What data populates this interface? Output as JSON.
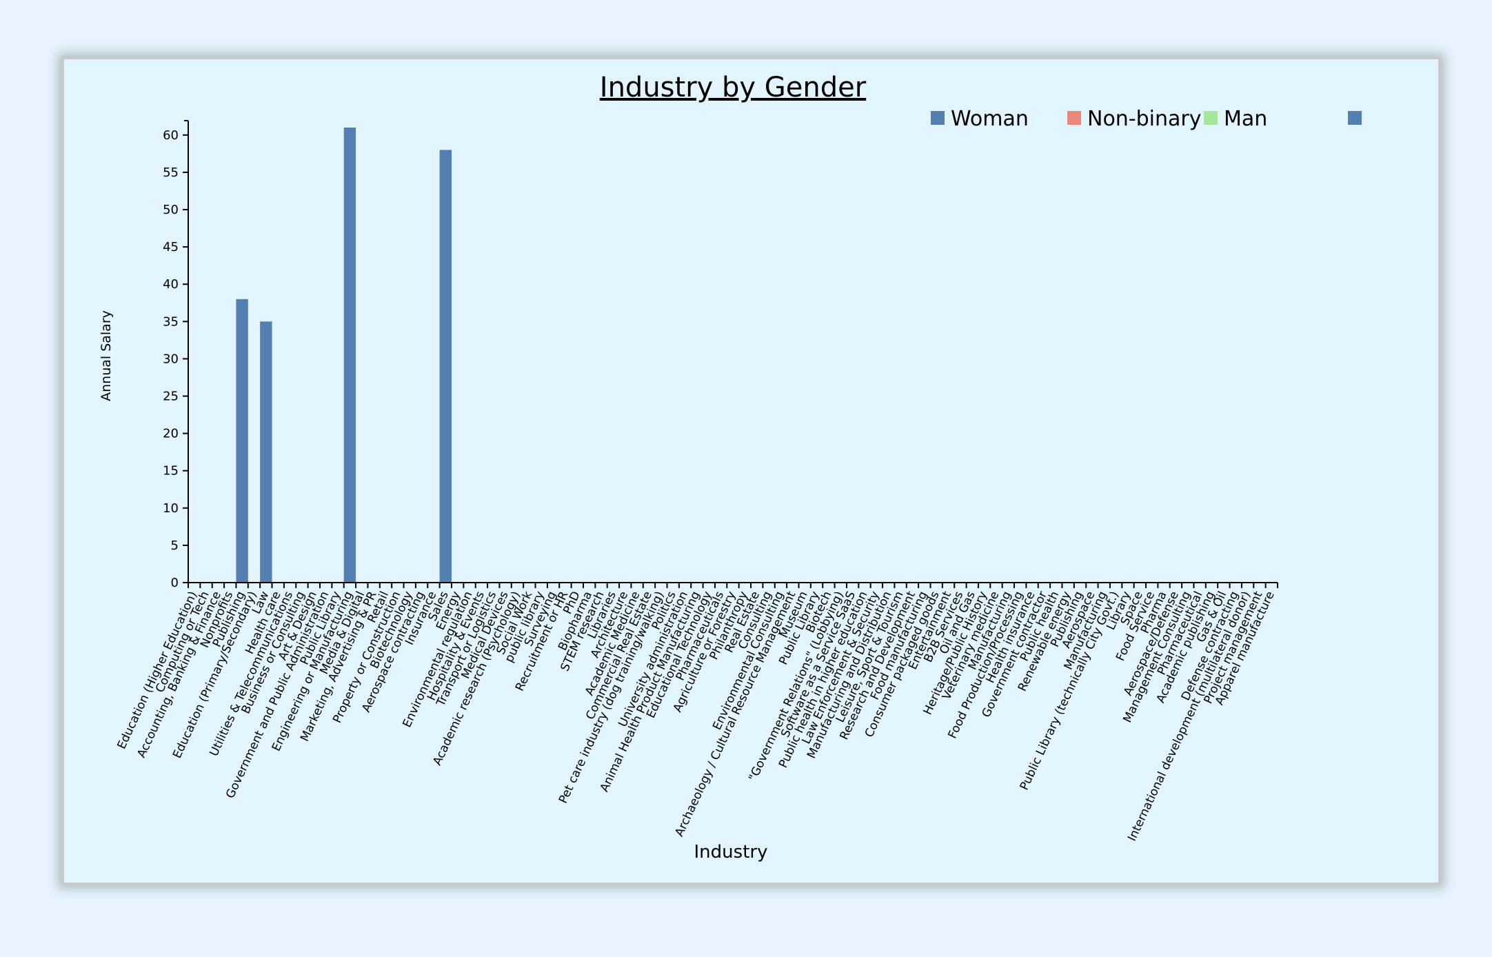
{
  "chart_data": {
    "type": "bar",
    "title": "Industry by Gender",
    "xlabel": "Industry",
    "ylabel": "Annual Salary",
    "ylim": [
      0,
      61
    ],
    "yticks": [
      0,
      5,
      10,
      15,
      20,
      25,
      30,
      35,
      40,
      45,
      50,
      55,
      60
    ],
    "grid": false,
    "legend_position": "top-right",
    "legend": [
      {
        "label": "Woman",
        "color": "#5380b0"
      },
      {
        "label": "Non-binary",
        "color": "#e8877a"
      },
      {
        "label": "Man",
        "color": "#a6e69b"
      },
      {
        "label": "",
        "color": "#5380b0"
      }
    ],
    "categories": [
      "Education (Higher Education)",
      "Computing or Tech",
      "Accounting, Banking & Finance",
      "Nonprofits",
      "Publishing",
      "Education (Primary/Secondary)",
      "Law",
      "Health care",
      "Utilities & Telecommunications",
      "Business or Consulting",
      "Art & Design",
      "Government and Public Administration",
      "Public Library",
      "Engineering or Manufacturing",
      "Media & Digital",
      "Marketing, Advertising & PR",
      "Retail",
      "Property or Construction",
      "Biotechnology",
      "Aerospace contracting",
      "Insurance",
      "Sales",
      "Energy",
      "Environmental regulation",
      "Hospitality & Events",
      "Transport or Logistics",
      "Medical Devices",
      "Academic research (Psychology)",
      "Social Work",
      "public library",
      "Surveying",
      "Recruitment or HR",
      "PhD",
      "Biopharma",
      "STEM research",
      "Libraries",
      "Architecture",
      "Academic Medicine",
      "Commercial Real Estate",
      "Pet care industry (dog training/walking)",
      "Politics",
      "University administration",
      "Animal Health Product Manufacturing",
      "Educational Technology",
      "Pharmaceuticals",
      "Agriculture or Forestry",
      "Philanthropy",
      "Real Estate",
      "Consulting",
      "Environmental Consulting",
      "Archaeology / Cultural Resource Management",
      "Museum",
      "Public Library",
      "Biotech",
      "\"Government Relations\" (Lobbying)",
      "Software as a Service SaaS",
      "Public health in higher education",
      "Law Enforcement & Security",
      "Manufacturing and Distribution",
      "Leisure, Sport & Tourism",
      "Research and Development",
      "Food manufacturing",
      "Consumer packaged goods",
      "Entertainment",
      "B2B Services",
      "Oil and Gas",
      "Heritage/Public History",
      "Veterinary medicine",
      "Manufacturing",
      "Food Production/Processing",
      "Health insurance",
      "Government contractor",
      "Public health",
      "Renewable energy",
      "Publishing",
      "Aerospace",
      "Manufacturing",
      "Public Library (technically City Govt.)",
      "Library",
      "Space",
      "Food Service",
      "Pharma",
      "Aerospace/Defense",
      "Management Consulting",
      "Pharmaceutical",
      "Academic publishing",
      "Gas & Oil",
      "Defense contracting",
      "International development (multilateral donor)",
      "Project management",
      "Apparel manufacture"
    ],
    "series": [
      {
        "name": "Woman",
        "color": "#5380b0",
        "values": [
          0,
          0,
          0,
          0,
          38,
          0,
          35,
          0,
          0,
          0,
          0,
          0,
          0,
          61,
          0,
          0,
          0,
          0,
          0,
          0,
          0,
          58,
          0,
          0,
          0,
          0,
          0,
          0,
          0,
          0,
          0,
          0,
          0,
          0,
          0,
          0,
          0,
          0,
          0,
          0,
          0,
          0,
          0,
          0,
          0,
          0,
          0,
          0,
          0,
          0,
          0,
          0,
          0,
          0,
          0,
          0,
          0,
          0,
          0,
          0,
          0,
          0,
          0,
          0,
          0,
          0,
          0,
          0,
          0,
          0,
          0,
          0,
          0,
          0,
          0,
          0,
          0,
          0,
          0,
          0,
          0,
          0,
          0,
          0,
          0,
          0,
          0,
          0,
          0,
          0,
          0
        ]
      }
    ]
  }
}
